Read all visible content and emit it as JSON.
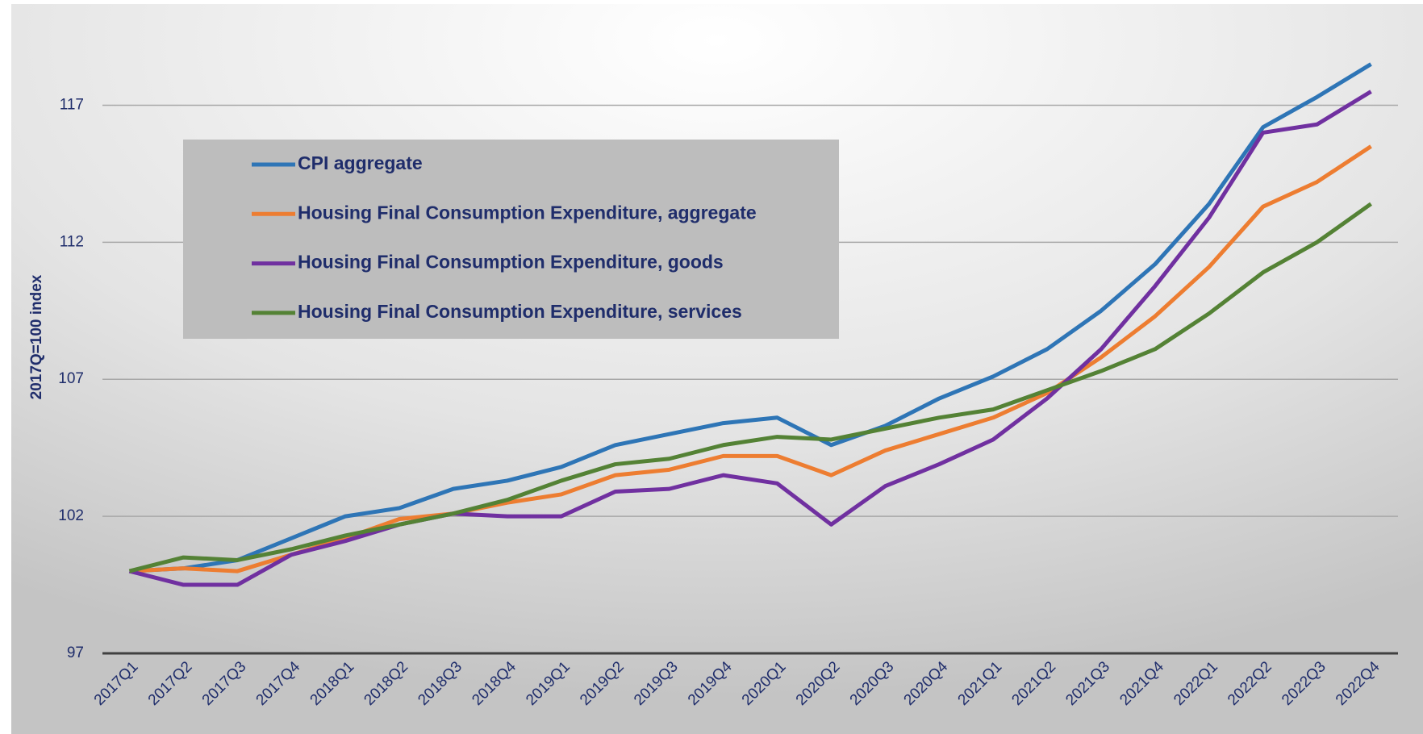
{
  "chart_data": {
    "type": "line",
    "ylabel": "2017Q=100 index",
    "categories": [
      "2017Q1",
      "2017Q2",
      "2017Q3",
      "2017Q4",
      "2018Q1",
      "2018Q2",
      "2018Q3",
      "2018Q4",
      "2019Q1",
      "2019Q2",
      "2019Q3",
      "2019Q4",
      "2020Q1",
      "2020Q2",
      "2020Q3",
      "2020Q4",
      "2021Q1",
      "2021Q2",
      "2021Q3",
      "2021Q4",
      "2022Q1",
      "2022Q2",
      "2022Q3",
      "2022Q4"
    ],
    "series": [
      {
        "name": "CPI aggregate",
        "color": "#2e75b6",
        "values": [
          100,
          100.1,
          100.4,
          101.2,
          102,
          102.3,
          103,
          103.3,
          103.8,
          104.6,
          105,
          105.4,
          105.6,
          104.6,
          105.3,
          106.3,
          107.1,
          108.1,
          109.5,
          111.2,
          113.4,
          116.2,
          117.3,
          118.5
        ]
      },
      {
        "name": "Housing Final Consumption Expenditure, aggregate",
        "color": "#ed7d31",
        "values": [
          100,
          100.1,
          100,
          100.6,
          101.2,
          101.9,
          102.1,
          102.5,
          102.8,
          103.5,
          103.7,
          104.2,
          104.2,
          103.5,
          104.4,
          105,
          105.6,
          106.5,
          107.8,
          109.3,
          111.1,
          113.3,
          114.2,
          115.5
        ]
      },
      {
        "name": "Housing Final Consumption Expenditure, goods",
        "color": "#7030a0",
        "values": [
          100,
          99.5,
          99.5,
          100.6,
          101.1,
          101.7,
          102.1,
          102,
          102,
          102.9,
          103,
          103.5,
          103.2,
          101.7,
          103.1,
          103.9,
          104.8,
          106.3,
          108.1,
          110.4,
          112.9,
          116,
          116.3,
          117.5
        ]
      },
      {
        "name": "Housing Final Consumption Expenditure, services",
        "color": "#548235",
        "values": [
          100,
          100.5,
          100.4,
          100.8,
          101.3,
          101.7,
          102.1,
          102.6,
          103.3,
          103.9,
          104.1,
          104.6,
          104.9,
          104.8,
          105.2,
          105.6,
          105.9,
          106.6,
          107.3,
          108.1,
          109.4,
          110.9,
          112,
          113.4
        ]
      }
    ],
    "ylim": [
      97,
      119
    ],
    "yticks": [
      97,
      102,
      107,
      112,
      117
    ],
    "grid": true,
    "legend": "upper left"
  }
}
